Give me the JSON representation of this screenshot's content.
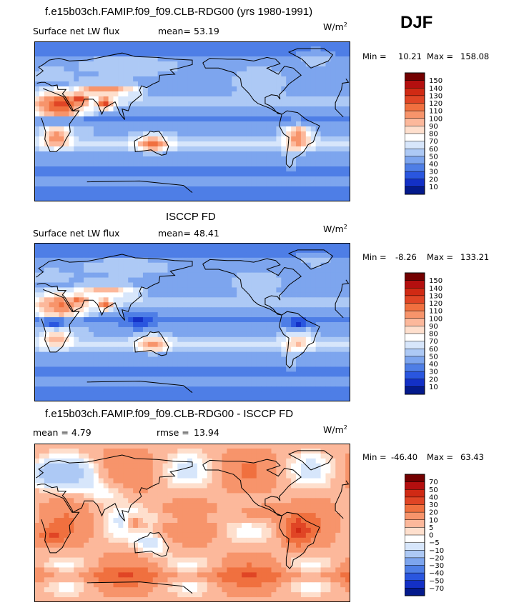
{
  "season": "DJF",
  "panels": [
    {
      "title": "f.e15b03ch.FAMIP.f09_f09.CLB-RDG00 (yrs 1980-1991)",
      "left_label": "Surface net LW flux",
      "stat_label": "mean=",
      "stat_value": "53.19",
      "units": "W/m",
      "units_sup": "2",
      "min_label": "Min =",
      "min_value": "10.21",
      "max_label": "Max =",
      "max_value": "158.08"
    },
    {
      "title": "ISCCP FD",
      "left_label": "Surface net LW flux",
      "stat_label": "mean=",
      "stat_value": "48.41",
      "units": "W/m",
      "units_sup": "2",
      "min_label": "Min =",
      "min_value": "-8.26",
      "max_label": "Max =",
      "max_value": "133.21"
    },
    {
      "title": "f.e15b03ch.FAMIP.f09_f09.CLB-RDG00 - ISCCP FD",
      "left_label": "mean =   4.79",
      "stat_label": "rmse =",
      "stat_value": "13.94",
      "units": "W/m",
      "units_sup": "2",
      "min_label": "Min =",
      "min_value": "-46.40",
      "max_label": "Max =",
      "max_value": "63.43"
    }
  ],
  "chart_data": [
    {
      "type": "heatmap",
      "title": "f.e15b03ch.FAMIP.f09_f09.CLB-RDG00 (yrs 1980-1991)",
      "variable": "Surface net LW flux",
      "units": "W/m2",
      "mean": 53.19,
      "min": 10.21,
      "max": 158.08,
      "colorbar_levels": [
        150,
        140,
        130,
        120,
        110,
        100,
        90,
        80,
        70,
        60,
        50,
        40,
        30,
        20,
        10
      ],
      "colorbar_colors": [
        "#730000",
        "#b40f0f",
        "#d02a14",
        "#e04525",
        "#f0703f",
        "#f7946b",
        "#fcb89b",
        "#fedfcd",
        "#ffffff",
        "#d7e6fb",
        "#adc9f5",
        "#7da5ee",
        "#4e7ee6",
        "#2a56df",
        "#1330c6",
        "#041a8c"
      ]
    },
    {
      "type": "heatmap",
      "title": "ISCCP FD",
      "variable": "Surface net LW flux",
      "units": "W/m2",
      "mean": 48.41,
      "min": -8.26,
      "max": 133.21,
      "colorbar_levels": [
        150,
        140,
        130,
        120,
        110,
        100,
        90,
        80,
        70,
        60,
        50,
        40,
        30,
        20,
        10
      ],
      "colorbar_colors": [
        "#730000",
        "#b40f0f",
        "#d02a14",
        "#e04525",
        "#f0703f",
        "#f7946b",
        "#fcb89b",
        "#fedfcd",
        "#ffffff",
        "#d7e6fb",
        "#adc9f5",
        "#7da5ee",
        "#4e7ee6",
        "#2a56df",
        "#1330c6",
        "#041a8c"
      ]
    },
    {
      "type": "heatmap",
      "title": "f.e15b03ch.FAMIP.f09_f09.CLB-RDG00 - ISCCP FD",
      "units": "W/m2",
      "mean": 4.79,
      "rmse": 13.94,
      "min": -46.4,
      "max": 63.43,
      "colorbar_levels": [
        70,
        50,
        40,
        30,
        20,
        10,
        5,
        0,
        -5,
        -10,
        -20,
        -30,
        -40,
        -50,
        -70
      ],
      "colorbar_colors": [
        "#730000",
        "#b40f0f",
        "#d02a14",
        "#e04525",
        "#f0703f",
        "#f7946b",
        "#fcb89b",
        "#fedfcd",
        "#ffffff",
        "#d7e6fb",
        "#adc9f5",
        "#7da5ee",
        "#4e7ee6",
        "#2a56df",
        "#1330c6",
        "#041a8c"
      ]
    }
  ]
}
